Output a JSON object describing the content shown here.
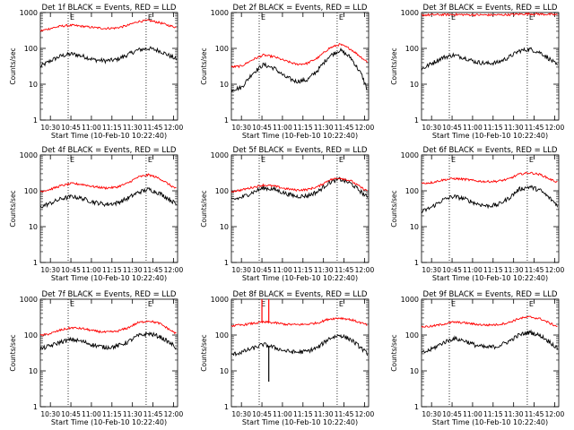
{
  "colors": {
    "events": "#000000",
    "lld": "#ff0000",
    "axis": "#000000",
    "background": "#ffffff"
  },
  "chart_data": [
    {
      "type": "line",
      "title": "Det 1f BLACK = Events, RED = LLD",
      "xlabel": "Start Time (10-Feb-10 10:22:40)",
      "ylabel": "Counts/sec",
      "xlim": [
        "10:22:40",
        "12:03:00"
      ],
      "ylim": [
        1,
        1000
      ],
      "yscale": "log",
      "xticks": [
        "10:30",
        "10:45",
        "11:00",
        "11:15",
        "11:30",
        "11:45",
        "12:00"
      ],
      "yticks": [
        "1",
        "10",
        "100",
        "1000"
      ],
      "markers": [
        {
          "time": "10:43",
          "label": "E"
        },
        {
          "time": "11:40",
          "label": "E"
        }
      ],
      "x": [
        "10:22",
        "10:30",
        "10:38",
        "10:46",
        "10:54",
        "11:02",
        "11:10",
        "11:18",
        "11:26",
        "11:34",
        "11:42",
        "11:50",
        "11:58",
        "12:02"
      ],
      "series": [
        {
          "name": "Events",
          "values": [
            30,
            45,
            62,
            70,
            60,
            48,
            45,
            48,
            65,
            90,
            100,
            85,
            60,
            50
          ]
        },
        {
          "name": "LLD",
          "values": [
            300,
            360,
            420,
            440,
            410,
            380,
            360,
            370,
            430,
            560,
            600,
            520,
            420,
            390
          ]
        }
      ]
    },
    {
      "type": "line",
      "title": "Det 2f BLACK = Events, RED = LLD",
      "xlabel": "Start Time (10-Feb-10 10:22:40)",
      "ylabel": "Counts/sec",
      "xlim": [
        "10:22:40",
        "12:03:00"
      ],
      "ylim": [
        1,
        1000
      ],
      "yscale": "log",
      "xticks": [
        "10:30",
        "10:45",
        "11:00",
        "11:15",
        "11:30",
        "11:45",
        "12:00"
      ],
      "yticks": [
        "1",
        "10",
        "100",
        "1000"
      ],
      "markers": [
        {
          "time": "10:43",
          "label": "E"
        },
        {
          "time": "11:40",
          "label": "E"
        }
      ],
      "x": [
        "10:22",
        "10:30",
        "10:38",
        "10:46",
        "10:54",
        "11:02",
        "11:10",
        "11:18",
        "11:26",
        "11:34",
        "11:42",
        "11:50",
        "11:58",
        "12:02"
      ],
      "series": [
        {
          "name": "Events",
          "values": [
            7,
            8,
            20,
            35,
            28,
            16,
            12,
            13,
            25,
            60,
            90,
            55,
            18,
            7
          ]
        },
        {
          "name": "LLD",
          "values": [
            30,
            32,
            48,
            65,
            58,
            45,
            36,
            38,
            55,
            100,
            130,
            95,
            55,
            42
          ]
        }
      ]
    },
    {
      "type": "line",
      "title": "Det 3f BLACK = Events, RED = LLD",
      "xlabel": "Start Time (10-Feb-10 10:22:40)",
      "ylabel": "Counts/sec",
      "xlim": [
        "10:22:40",
        "12:03:00"
      ],
      "ylim": [
        1,
        1000
      ],
      "yscale": "log",
      "xticks": [
        "10:30",
        "10:45",
        "11:00",
        "11:15",
        "11:30",
        "11:45",
        "12:00"
      ],
      "yticks": [
        "1",
        "10",
        "100",
        "1000"
      ],
      "markers": [
        {
          "time": "10:43",
          "label": "E"
        },
        {
          "time": "11:40",
          "label": "E"
        }
      ],
      "x": [
        "10:22",
        "10:30",
        "10:38",
        "10:46",
        "10:54",
        "11:02",
        "11:10",
        "11:18",
        "11:26",
        "11:34",
        "11:42",
        "11:50",
        "11:58",
        "12:02"
      ],
      "series": [
        {
          "name": "Events",
          "values": [
            25,
            38,
            55,
            65,
            55,
            42,
            38,
            40,
            55,
            85,
            95,
            75,
            45,
            32
          ]
        },
        {
          "name": "LLD",
          "values": [
            850,
            860,
            870,
            880,
            870,
            860,
            855,
            860,
            870,
            900,
            920,
            900,
            880,
            870
          ]
        }
      ]
    },
    {
      "type": "line",
      "title": "Det 4f BLACK = Events, RED = LLD",
      "xlabel": "Start Time (10-Feb-10 10:22:40)",
      "ylabel": "Counts/sec",
      "xlim": [
        "10:22:40",
        "12:03:00"
      ],
      "ylim": [
        1,
        1000
      ],
      "yscale": "log",
      "xticks": [
        "10:30",
        "10:45",
        "11:00",
        "11:15",
        "11:30",
        "11:45",
        "12:00"
      ],
      "yticks": [
        "1",
        "10",
        "100",
        "1000"
      ],
      "markers": [
        {
          "time": "10:43",
          "label": "E"
        },
        {
          "time": "11:40",
          "label": "E"
        }
      ],
      "x": [
        "10:22",
        "10:30",
        "10:38",
        "10:46",
        "10:54",
        "11:02",
        "11:10",
        "11:18",
        "11:26",
        "11:34",
        "11:42",
        "11:50",
        "11:58",
        "12:02"
      ],
      "series": [
        {
          "name": "Events",
          "values": [
            35,
            45,
            60,
            70,
            60,
            48,
            42,
            45,
            60,
            90,
            110,
            85,
            55,
            42
          ]
        },
        {
          "name": "LLD",
          "values": [
            95,
            110,
            140,
            160,
            150,
            130,
            120,
            125,
            160,
            240,
            280,
            220,
            140,
            115
          ]
        }
      ]
    },
    {
      "type": "line",
      "title": "Det 5f BLACK = Events, RED = LLD",
      "xlabel": "Start Time (10-Feb-10 10:22:40)",
      "ylabel": "Counts/sec",
      "xlim": [
        "10:22:40",
        "12:03:00"
      ],
      "ylim": [
        1,
        1000
      ],
      "yscale": "log",
      "xticks": [
        "10:30",
        "10:45",
        "11:00",
        "11:15",
        "11:30",
        "11:45",
        "12:00"
      ],
      "yticks": [
        "1",
        "10",
        "100",
        "1000"
      ],
      "markers": [
        {
          "time": "10:43",
          "label": "E"
        },
        {
          "time": "11:40",
          "label": "E"
        }
      ],
      "x": [
        "10:22",
        "10:30",
        "10:38",
        "10:46",
        "10:54",
        "11:02",
        "11:10",
        "11:18",
        "11:26",
        "11:34",
        "11:42",
        "11:50",
        "11:58",
        "12:02"
      ],
      "series": [
        {
          "name": "Events",
          "values": [
            55,
            65,
            90,
            120,
            110,
            85,
            70,
            72,
            95,
            170,
            210,
            160,
            90,
            65
          ]
        },
        {
          "name": "LLD",
          "values": [
            95,
            105,
            125,
            145,
            135,
            115,
            105,
            108,
            130,
            200,
            230,
            190,
            120,
            100
          ]
        }
      ]
    },
    {
      "type": "line",
      "title": "Det 6f BLACK = Events, RED = LLD",
      "xlabel": "Start Time (10-Feb-10 10:22:40)",
      "ylabel": "Counts/sec",
      "xlim": [
        "10:22:40",
        "12:03:00"
      ],
      "ylim": [
        1,
        1000
      ],
      "yscale": "log",
      "xticks": [
        "10:30",
        "10:45",
        "11:00",
        "11:15",
        "11:30",
        "11:45",
        "12:00"
      ],
      "yticks": [
        "1",
        "10",
        "100",
        "1000"
      ],
      "markers": [
        {
          "time": "10:43",
          "label": "E"
        },
        {
          "time": "11:40",
          "label": "E"
        }
      ],
      "x": [
        "10:22",
        "10:30",
        "10:38",
        "10:46",
        "10:54",
        "11:02",
        "11:10",
        "11:18",
        "11:26",
        "11:34",
        "11:42",
        "11:50",
        "11:58",
        "12:02"
      ],
      "series": [
        {
          "name": "Events",
          "values": [
            25,
            35,
            55,
            70,
            60,
            45,
            38,
            40,
            60,
            110,
            130,
            100,
            55,
            40
          ]
        },
        {
          "name": "LLD",
          "values": [
            160,
            170,
            200,
            220,
            210,
            190,
            180,
            185,
            210,
            290,
            320,
            280,
            200,
            175
          ]
        }
      ]
    },
    {
      "type": "line",
      "title": "Det 7f BLACK = Events, RED = LLD",
      "xlabel": "Start Time (10-Feb-10 10:22:40)",
      "ylabel": "Counts/sec",
      "xlim": [
        "10:22:40",
        "12:03:00"
      ],
      "ylim": [
        1,
        1000
      ],
      "yscale": "log",
      "xticks": [
        "10:30",
        "10:45",
        "11:00",
        "11:15",
        "11:30",
        "11:45",
        "12:00"
      ],
      "yticks": [
        "1",
        "10",
        "100",
        "1000"
      ],
      "markers": [
        {
          "time": "10:43",
          "label": "E"
        },
        {
          "time": "11:40",
          "label": "E"
        }
      ],
      "x": [
        "10:22",
        "10:30",
        "10:38",
        "10:46",
        "10:54",
        "11:02",
        "11:10",
        "11:18",
        "11:26",
        "11:34",
        "11:42",
        "11:50",
        "11:58",
        "12:02"
      ],
      "series": [
        {
          "name": "Events",
          "values": [
            40,
            50,
            65,
            75,
            65,
            52,
            45,
            48,
            62,
            95,
            110,
            90,
            58,
            45
          ]
        },
        {
          "name": "LLD",
          "values": [
            95,
            110,
            140,
            160,
            150,
            130,
            120,
            125,
            155,
            220,
            250,
            210,
            135,
            110
          ]
        }
      ]
    },
    {
      "type": "line",
      "title": "Det 8f BLACK = Events, RED = LLD",
      "xlabel": "Start Time (10-Feb-10 10:22:40)",
      "ylabel": "Counts/sec",
      "xlim": [
        "10:22:40",
        "12:03:00"
      ],
      "ylim": [
        1,
        1000
      ],
      "yscale": "log",
      "xticks": [
        "10:30",
        "10:45",
        "11:00",
        "11:15",
        "11:30",
        "11:45",
        "12:00"
      ],
      "yticks": [
        "1",
        "10",
        "100",
        "1000"
      ],
      "markers": [
        {
          "time": "10:43",
          "label": "E"
        },
        {
          "time": "11:40",
          "label": "E"
        }
      ],
      "x": [
        "10:22",
        "10:30",
        "10:38",
        "10:46",
        "10:54",
        "11:02",
        "11:10",
        "11:18",
        "11:26",
        "11:34",
        "11:42",
        "11:50",
        "11:58",
        "12:02"
      ],
      "series": [
        {
          "name": "Events",
          "values": [
            28,
            33,
            42,
            55,
            45,
            36,
            33,
            35,
            45,
            80,
            100,
            75,
            42,
            30
          ]
        },
        {
          "name": "LLD",
          "values": [
            180,
            190,
            210,
            230,
            220,
            200,
            195,
            200,
            220,
            280,
            300,
            270,
            215,
            190
          ]
        }
      ],
      "spikes": [
        {
          "time": "10:45",
          "series": "LLD",
          "value": 1000
        },
        {
          "time": "10:50",
          "series": "LLD",
          "value": 1000
        },
        {
          "time": "10:50",
          "series": "Events",
          "value": 5
        }
      ]
    },
    {
      "type": "line",
      "title": "Det 9f BLACK = Events, RED = LLD",
      "xlabel": "Start Time (10-Feb-10 10:22:40)",
      "ylabel": "Counts/sec",
      "xlim": [
        "10:22:40",
        "12:03:00"
      ],
      "ylim": [
        1,
        1000
      ],
      "yscale": "log",
      "xticks": [
        "10:30",
        "10:45",
        "11:00",
        "11:15",
        "11:30",
        "11:45",
        "12:00"
      ],
      "yticks": [
        "1",
        "10",
        "100",
        "1000"
      ],
      "markers": [
        {
          "time": "10:43",
          "label": "E"
        },
        {
          "time": "11:40",
          "label": "E"
        }
      ],
      "x": [
        "10:22",
        "10:30",
        "10:38",
        "10:46",
        "10:54",
        "11:02",
        "11:10",
        "11:18",
        "11:26",
        "11:34",
        "11:42",
        "11:50",
        "11:58",
        "12:02"
      ],
      "series": [
        {
          "name": "Events",
          "values": [
            30,
            40,
            60,
            80,
            70,
            52,
            45,
            48,
            65,
            100,
            120,
            95,
            58,
            42
          ]
        },
        {
          "name": "LLD",
          "values": [
            170,
            175,
            200,
            230,
            220,
            200,
            190,
            195,
            220,
            290,
            320,
            280,
            200,
            175
          ]
        }
      ]
    }
  ]
}
